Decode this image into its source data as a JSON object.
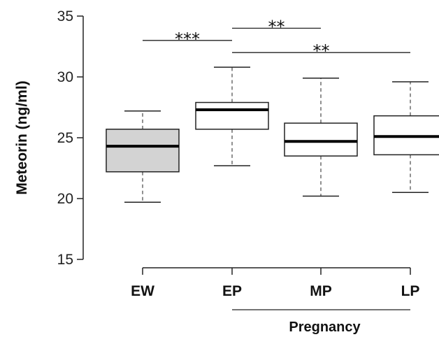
{
  "chart_data": {
    "type": "boxplot",
    "ylabel": "Meteorin (ng/ml)",
    "ylim": [
      15,
      35
    ],
    "yticks": [
      "15",
      "20",
      "25",
      "30",
      "35"
    ],
    "categories": [
      "EW",
      "EP",
      "MP",
      "LP"
    ],
    "boxes": [
      {
        "name": "EW",
        "whisker_low": 19.7,
        "q1": 22.2,
        "median": 24.3,
        "q3": 25.7,
        "whisker_high": 27.2,
        "fill": "#d3d3d3"
      },
      {
        "name": "EP",
        "whisker_low": 22.7,
        "q1": 25.7,
        "median": 27.3,
        "q3": 27.9,
        "whisker_high": 30.8,
        "fill": "#ffffff"
      },
      {
        "name": "MP",
        "whisker_low": 20.2,
        "q1": 23.5,
        "median": 24.7,
        "q3": 26.2,
        "whisker_high": 29.9,
        "fill": "#ffffff"
      },
      {
        "name": "LP",
        "whisker_low": 20.5,
        "q1": 23.6,
        "median": 25.1,
        "q3": 26.8,
        "whisker_high": 29.6,
        "fill": "#ffffff"
      }
    ],
    "group_bracket": {
      "label": "Pregnancy",
      "from": "EP",
      "to": "LP"
    },
    "significance": [
      {
        "from": "EW",
        "to": "EP",
        "label": "***",
        "y": 33.0
      },
      {
        "from": "EP",
        "to": "MP",
        "label": "**",
        "y": 34.0
      },
      {
        "from": "EP",
        "to": "LP",
        "label": "**",
        "y": 32.0
      }
    ]
  }
}
